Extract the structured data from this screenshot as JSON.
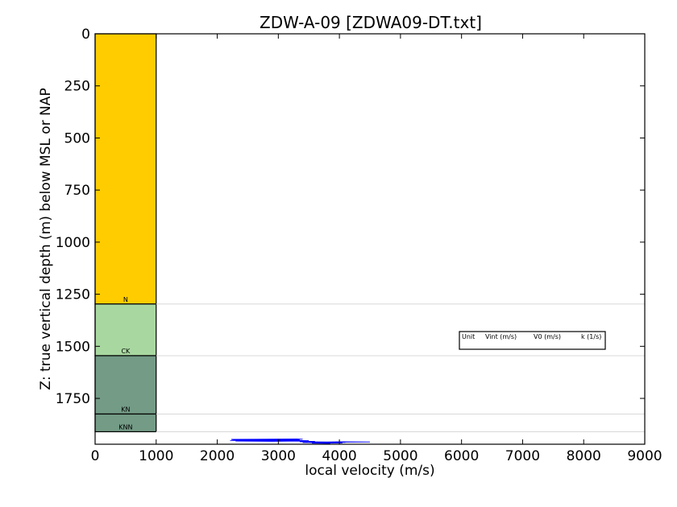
{
  "chart_data": {
    "type": "well-log-velocity",
    "title": "ZDW-A-09 [ZDWA09-DT.txt]",
    "xlabel": "local velocity (m/s)",
    "ylabel": "Z: true vertical depth (m) below MSL or NAP",
    "xlim": [
      0,
      9000
    ],
    "ylim": [
      1970,
      0
    ],
    "y_inverted": true,
    "grid": false,
    "xticks": [
      0,
      1000,
      2000,
      3000,
      4000,
      5000,
      6000,
      7000,
      8000,
      9000
    ],
    "yticks": [
      0,
      250,
      500,
      750,
      1000,
      1250,
      1500,
      1750
    ],
    "units": [
      {
        "name": "",
        "top": 0,
        "base": 1297,
        "color": "#ffcc00"
      },
      {
        "name": "N",
        "top": 1297,
        "base": 1545,
        "color": "#a8d8a0"
      },
      {
        "name": "CK",
        "top": 1545,
        "base": 1825,
        "color": "#739b86"
      },
      {
        "name": "KN",
        "top": 1825,
        "base": 1910,
        "color": "#739b86"
      },
      {
        "name": "KNN",
        "top": 1910,
        "base": 1910,
        "color": "#739b86"
      }
    ],
    "unit_column_width": 1000,
    "boundary_lines": [
      1297,
      1545,
      1825,
      1910
    ],
    "legend": {
      "headers": [
        "Unit",
        "Vint (m/s)",
        "V0 (m/s)",
        "k (1/s)"
      ],
      "rows": []
    },
    "velocity_series": {
      "name": "",
      "color": "#0000ff",
      "points": [
        [
          2230,
          1947
        ],
        [
          2600,
          1946
        ],
        [
          3300,
          1945
        ],
        [
          3400,
          1946
        ],
        [
          2250,
          1949
        ],
        [
          2700,
          1950
        ],
        [
          3100,
          1949
        ],
        [
          3350,
          1950
        ],
        [
          2210,
          1952
        ],
        [
          2800,
          1953
        ],
        [
          3250,
          1952
        ],
        [
          3500,
          1953
        ],
        [
          2300,
          1955
        ],
        [
          2900,
          1956
        ],
        [
          3300,
          1955
        ],
        [
          3600,
          1956
        ],
        [
          3350,
          1958
        ],
        [
          3800,
          1959
        ],
        [
          4000,
          1958
        ],
        [
          4500,
          1959
        ],
        [
          3500,
          1961
        ],
        [
          3900,
          1962
        ],
        [
          4100,
          1961
        ],
        [
          3700,
          1963
        ],
        [
          3400,
          1962
        ],
        [
          4050,
          1964
        ],
        [
          3550,
          1965
        ],
        [
          3850,
          1966
        ]
      ]
    }
  }
}
